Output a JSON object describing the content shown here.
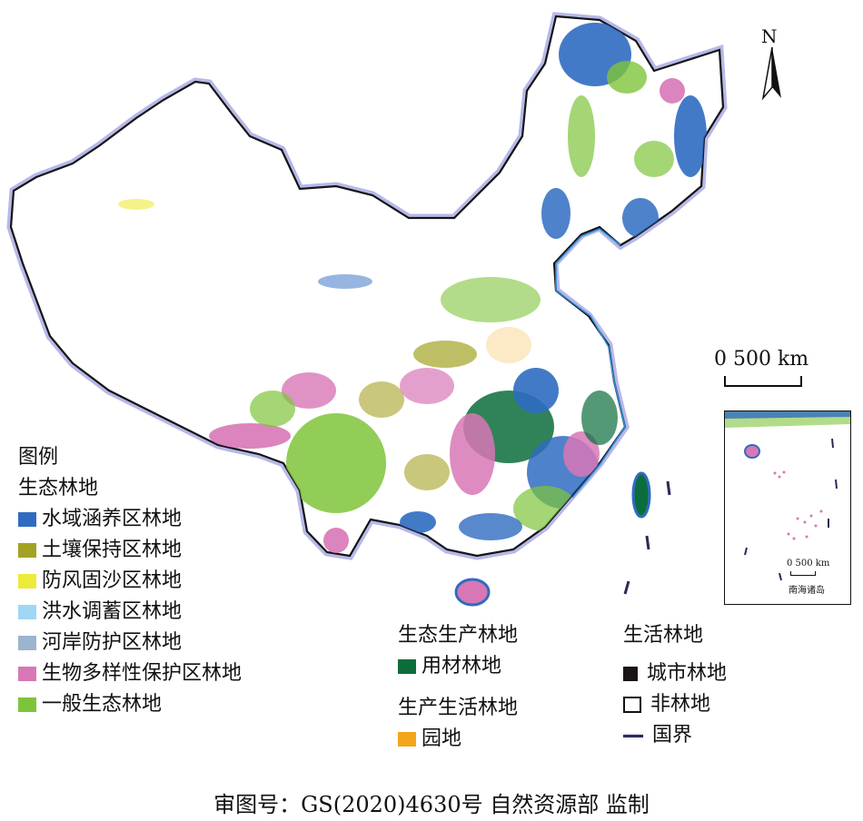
{
  "north_label": "N",
  "scale": {
    "main": "0  500 km",
    "inset": "0   500 km"
  },
  "inset": {
    "label": "南海诸岛"
  },
  "legend": {
    "title": "图例",
    "eco": {
      "heading": "生态林地",
      "items": [
        {
          "label": "水域涵养区林地",
          "color": "#2f6cc1"
        },
        {
          "label": "土壤保持区林地",
          "color": "#a3a224"
        },
        {
          "label": "防风固沙区林地",
          "color": "#eeea3a"
        },
        {
          "label": "洪水调蓄区林地",
          "color": "#9fd7f4"
        },
        {
          "label": "河岸防护区林地",
          "color": "#9cb4cf"
        },
        {
          "label": "生物多样性保护区林地",
          "color": "#d877b6"
        },
        {
          "label": "一般生态林地",
          "color": "#7ec43a"
        }
      ]
    },
    "eco_prod": {
      "heading": "生态生产林地",
      "items": [
        {
          "label": "用材林地",
          "color": "#0c6d3c"
        }
      ]
    },
    "prod_life": {
      "heading": "生产生活林地",
      "items": [
        {
          "label": "园地",
          "color": "#f3a61b"
        }
      ]
    },
    "life": {
      "heading": "生活林地",
      "items": [
        {
          "label": "城市林地",
          "color": "#1a1414"
        },
        {
          "label": "非林地",
          "color": "#ffffff"
        },
        {
          "label": "国界",
          "color": "#2a2a55"
        }
      ]
    }
  },
  "approval": "审图号：GS(2020)4630号 自然资源部 监制"
}
